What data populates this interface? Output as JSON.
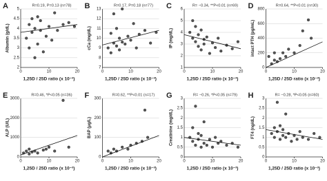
{
  "chart_data": [
    {
      "type": "scatter",
      "label": "A",
      "stat": "R=0.19, P=0.13 (n=78)",
      "x_label": "1,25D / 25D ratio (x 10⁻³)",
      "y_label": "Albumin (g/dL)",
      "x": [
        2,
        3,
        3,
        4,
        4,
        5,
        5,
        6,
        6,
        7,
        7,
        8,
        9,
        10,
        11,
        12,
        13,
        15,
        17,
        19
      ],
      "values": [
        3.5,
        4.2,
        3,
        4.5,
        3.8,
        2.5,
        4,
        4.6,
        3.2,
        3.9,
        4.4,
        2.8,
        3.6,
        4.1,
        3.4,
        4.8,
        3.9,
        4.2,
        4.3,
        4.1
      ],
      "xlim": [
        0,
        20
      ],
      "xticks": [
        0,
        10,
        20
      ],
      "ylim": [
        2,
        5
      ],
      "yticks": [
        2,
        2.5,
        3,
        3.5,
        4,
        4.5,
        5
      ],
      "trendline": {
        "x": [
          0,
          20
        ],
        "y": [
          3.8,
          4.2
        ]
      },
      "color": "#555555"
    },
    {
      "type": "scatter",
      "label": "B",
      "stat": "R=0.17, P=0.18 (n=77)",
      "x_label": "1,25D / 25D ratio (x 10⁻³)",
      "y_label": "cCa (mg/dL)",
      "x": [
        2,
        3,
        3,
        4,
        4,
        5,
        5,
        6,
        6,
        7,
        7,
        8,
        9,
        10,
        11,
        12,
        13,
        15,
        17,
        19
      ],
      "values": [
        9,
        10.5,
        8.5,
        9.5,
        12.5,
        9.2,
        11,
        8.8,
        10,
        9.6,
        13,
        9.4,
        10.2,
        9.8,
        11.5,
        9,
        10.4,
        10.8,
        9.5,
        10.6
      ],
      "xlim": [
        0,
        20
      ],
      "xticks": [
        0,
        10,
        20
      ],
      "ylim": [
        7,
        13
      ],
      "yticks": [
        7,
        8,
        9,
        10,
        11,
        12,
        13
      ],
      "trendline": {
        "x": [
          0,
          20
        ],
        "y": [
          9.3,
          10.8
        ]
      },
      "color": "#555555"
    },
    {
      "type": "scatter",
      "label": "C",
      "stat": "R= −0.34, **P<0.01 (n=69)",
      "x_label": "1,25D / 25D ratio (x 10⁻³)",
      "y_label": "IP (mg/dL)",
      "x": [
        2,
        3,
        3,
        4,
        4,
        5,
        5,
        6,
        6,
        7,
        7,
        8,
        9,
        10,
        11,
        12,
        13,
        15,
        17,
        19
      ],
      "values": [
        4,
        3.5,
        5,
        3.2,
        4.5,
        2.8,
        3.8,
        4.2,
        2.5,
        3.4,
        3,
        3.6,
        2.2,
        3.1,
        2.7,
        3.5,
        2.4,
        2.9,
        2.6,
        3.2
      ],
      "xlim": [
        0,
        20
      ],
      "xticks": [
        0,
        10,
        20
      ],
      "ylim": [
        1,
        6
      ],
      "yticks": [
        1,
        2,
        3,
        4,
        5,
        6
      ],
      "trendline": {
        "x": [
          0,
          20
        ],
        "y": [
          3.8,
          2.6
        ]
      },
      "color": "#555555"
    },
    {
      "type": "scatter",
      "label": "D",
      "stat": "R=0.64, **P<0.01 (n=30)",
      "x_label": "1,25D / 25D ratio (x 10⁻³)",
      "y_label": "intact PTH (pg/mL)",
      "x": [
        1,
        2,
        3,
        3,
        4,
        5,
        6,
        7,
        8,
        10,
        12,
        13,
        15,
        16
      ],
      "values": [
        150,
        50,
        200,
        100,
        80,
        120,
        200,
        150,
        250,
        200,
        300,
        500,
        650,
        400
      ],
      "xlim": [
        0,
        20
      ],
      "xticks": [
        0,
        10,
        20
      ],
      "ylim": [
        0,
        800
      ],
      "yticks": [
        0,
        200,
        400,
        600,
        800
      ],
      "trendline": {
        "x": [
          0,
          20
        ],
        "y": [
          0,
          350
        ]
      },
      "color": "#555555"
    },
    {
      "type": "scatter",
      "label": "E",
      "stat": "R=0.46, *P<0.05 (n=36)",
      "x_label": "1,25D / 25D ratio (x 10⁻³)",
      "y_label": "ALP (U/L)",
      "x": [
        1,
        2,
        3,
        3,
        4,
        5,
        6,
        8,
        9,
        10,
        12,
        15,
        17
      ],
      "values": [
        200,
        300,
        150,
        400,
        250,
        300,
        200,
        350,
        400,
        500,
        300,
        2900,
        500
      ],
      "xlim": [
        0,
        20
      ],
      "xticks": [
        0,
        10,
        20
      ],
      "ylim": [
        0,
        3000
      ],
      "yticks": [
        0,
        1000,
        2000,
        3000
      ],
      "trendline": {
        "x": [
          0,
          20
        ],
        "y": [
          100,
          1100
        ]
      },
      "color": "#555555"
    },
    {
      "type": "scatter",
      "label": "F",
      "stat": "R=0.62, **P<0.01 (n=17)",
      "x_label": "1,25D / 25D ratio (x 10⁻³)",
      "y_label": "BAP (μg/L)",
      "x": [
        2,
        3,
        4,
        5,
        7,
        9,
        10,
        12,
        14,
        15,
        16
      ],
      "values": [
        30,
        20,
        40,
        30,
        50,
        40,
        60,
        70,
        80,
        240,
        100
      ],
      "xlim": [
        0,
        20
      ],
      "xticks": [
        0,
        10,
        20
      ],
      "ylim": [
        0,
        300
      ],
      "yticks": [
        0,
        100,
        200,
        300
      ],
      "trendline": {
        "x": [
          0,
          20
        ],
        "y": [
          0,
          110
        ]
      },
      "color": "#555555"
    },
    {
      "type": "scatter",
      "label": "G",
      "stat": "R= −0.26, *P<0.05 (n=79)",
      "x_label": "1,25D / 25D ratio (x 10⁻³)",
      "y_label": "Creatinine (mg/dL)",
      "x": [
        2,
        3,
        3,
        4,
        4,
        5,
        5,
        6,
        6,
        7,
        7,
        8,
        9,
        10,
        11,
        12,
        13,
        15,
        17,
        19
      ],
      "values": [
        1,
        0.8,
        1.5,
        0.6,
        2.6,
        1.2,
        0.9,
        0.5,
        1.1,
        0.7,
        1.8,
        0.6,
        0.9,
        0.5,
        1,
        0.7,
        0.8,
        0.6,
        0.7,
        0.5
      ],
      "xlim": [
        0,
        20
      ],
      "xticks": [
        0,
        10,
        20
      ],
      "ylim": [
        0,
        3
      ],
      "yticks": [
        0,
        0.5,
        1,
        1.5,
        2,
        2.5,
        3
      ],
      "trendline": {
        "x": [
          0,
          20
        ],
        "y": [
          1,
          0.6
        ]
      },
      "color": "#555555"
    },
    {
      "type": "scatter",
      "label": "H",
      "stat": "R= −0.28, *P<0.05 (n=60)",
      "x_label": "1,25D / 25D ratio (x 10⁻³)",
      "y_label": "FT4 (ng/dL)",
      "x": [
        2,
        3,
        3,
        4,
        4,
        5,
        5,
        6,
        6,
        7,
        7,
        8,
        9,
        10,
        11,
        12,
        13,
        15,
        17,
        19
      ],
      "values": [
        1.2,
        1.5,
        1,
        2.8,
        1.3,
        0.9,
        1.6,
        1.1,
        1.4,
        1,
        2.2,
        1.2,
        0.8,
        1.1,
        0.9,
        1.3,
        1,
        0.9,
        1.2,
        1
      ],
      "xlim": [
        0,
        20
      ],
      "xticks": [
        0,
        10,
        20
      ],
      "ylim": [
        0,
        3
      ],
      "yticks": [
        0,
        0.5,
        1,
        1.5,
        2,
        2.5,
        3
      ],
      "trendline": {
        "x": [
          0,
          20
        ],
        "y": [
          1.4,
          0.9
        ]
      },
      "color": "#555555"
    }
  ]
}
